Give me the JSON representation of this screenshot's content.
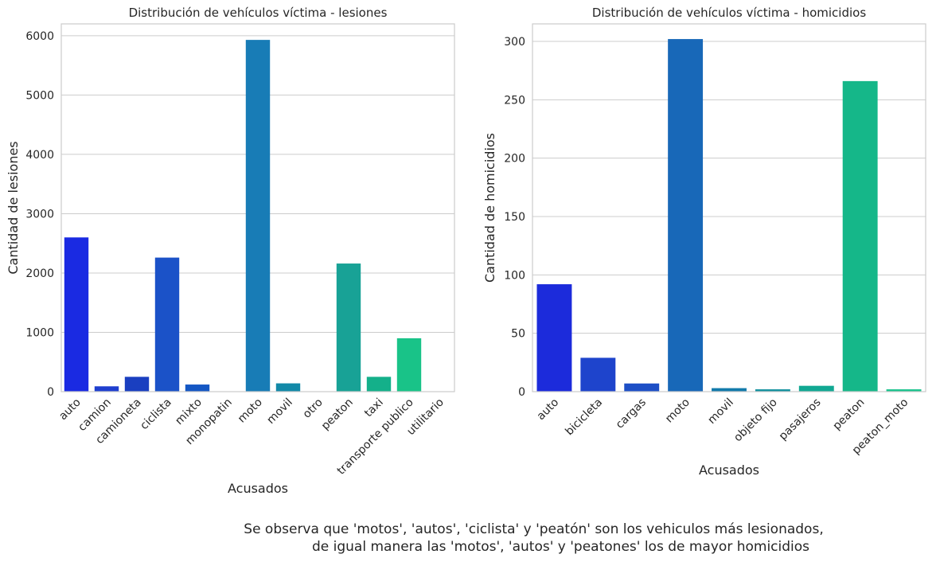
{
  "chart_data": [
    {
      "type": "bar",
      "title": "Distribución de vehículos víctima - lesiones",
      "xlabel": "Acusados",
      "ylabel": "Cantidad de lesiones",
      "ylim": [
        0,
        6200
      ],
      "yticks": [
        0,
        1000,
        2000,
        3000,
        4000,
        5000,
        6000
      ],
      "grid": true,
      "categories": [
        "auto",
        "camion",
        "camioneta",
        "ciclista",
        "mixto",
        "monopatin",
        "moto",
        "movil",
        "otro",
        "peaton",
        "taxi",
        "transporte publico",
        "utilitario"
      ],
      "values": [
        2600,
        90,
        250,
        2260,
        120,
        5,
        5930,
        140,
        3,
        2160,
        250,
        900,
        2
      ],
      "colors": [
        "#1a2ae2",
        "#1f3fcf",
        "#1a3fc0",
        "#1b52c8",
        "#1457c4",
        "#1570c0",
        "#187cb6",
        "#1289a8",
        "#11919e",
        "#18a296",
        "#14b08a",
        "#19c388",
        "#17c98a"
      ]
    },
    {
      "type": "bar",
      "title": "Distribución de vehículos víctima - homicidios",
      "xlabel": "Acusados",
      "ylabel": "Cantidad de homicidios",
      "ylim": [
        0,
        315
      ],
      "yticks": [
        0,
        50,
        100,
        150,
        200,
        250,
        300
      ],
      "grid": true,
      "categories": [
        "auto",
        "bicicleta",
        "cargas",
        "moto",
        "movil",
        "objeto fijo",
        "pasajeros",
        "peaton",
        "peaton_moto"
      ],
      "values": [
        92,
        29,
        7,
        302,
        3,
        2,
        5,
        266,
        2
      ],
      "colors": [
        "#1c2bdb",
        "#1e44cc",
        "#1d4fc6",
        "#1868b8",
        "#127aab",
        "#12909e",
        "#11a893",
        "#15b789",
        "#19c38d"
      ]
    }
  ],
  "caption": {
    "line1": "Se observa que 'motos', 'autos', 'ciclista' y 'peatón' son los vehiculos más lesionados,",
    "line2": "de igual manera las 'motos', 'autos' y 'peatones' los de mayor homicidios"
  }
}
